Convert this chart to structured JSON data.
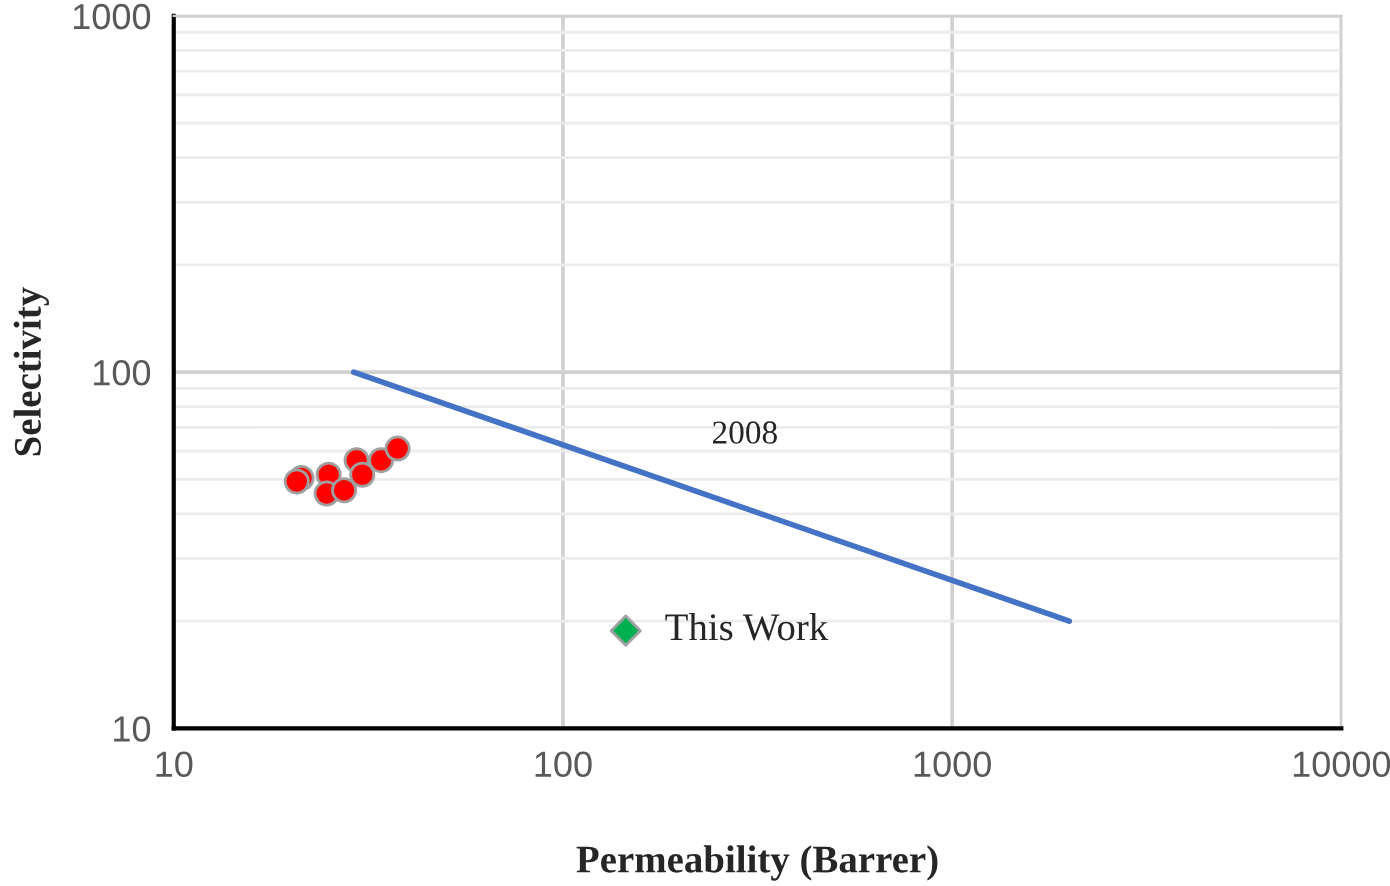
{
  "chart_data": {
    "type": "scatter",
    "xlabel": "Permeability (Barrer)",
    "ylabel": "Selectivity",
    "log": "xy",
    "xlim": [
      10,
      10000
    ],
    "ylim": [
      10,
      1000
    ],
    "xticks": [
      10,
      100,
      1000,
      10000
    ],
    "yticks": [
      10,
      100,
      1000
    ],
    "grid": true,
    "legend": false,
    "series": [
      {
        "color": "#ff0000",
        "marker": "circle",
        "x": [
          21.3,
          20.7,
          25.0,
          24.7,
          27.4,
          29.5,
          30.5,
          34.1,
          37.6
        ],
        "values": [
          50.4,
          49.3,
          51.5,
          45.6,
          46.6,
          56.6,
          51.5,
          56.6,
          61.0
        ]
      },
      {
        "name": "2008",
        "type": "line",
        "color": "#4472c4",
        "marker": "none",
        "x": [
          29,
          2000
        ],
        "values": [
          100,
          20
        ]
      },
      {
        "name": "This Work",
        "color": "#00b050",
        "marker": "diamond",
        "x": [
          145
        ],
        "values": [
          18.8
        ]
      }
    ]
  }
}
